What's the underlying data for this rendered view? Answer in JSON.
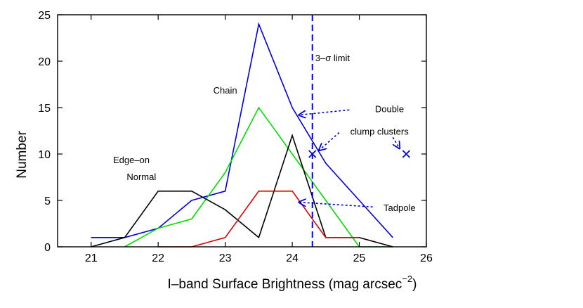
{
  "chart_data": {
    "type": "line",
    "title": "",
    "xlabel": "I–band Surface Brightness (mag arcsec",
    "xlabel_sup": "−2",
    "xlabel_close": ")",
    "ylabel": "Number",
    "xlim": [
      20.5,
      26
    ],
    "ylim": [
      0,
      25
    ],
    "xticks": [
      21,
      22,
      23,
      24,
      25,
      26
    ],
    "yticks": [
      0,
      5,
      10,
      15,
      20,
      25
    ],
    "grid": false,
    "series": [
      {
        "color": "#0000dd",
        "x": [
          21,
          21.5,
          22,
          22.5,
          23,
          23.5,
          24,
          24.5,
          25,
          25.5
        ],
        "y": [
          1,
          1,
          2,
          5,
          6,
          24,
          15,
          9,
          5,
          1
        ]
      },
      {
        "color": "#00dd00",
        "x": [
          21.5,
          22,
          22.5,
          23,
          23.5,
          24,
          24.5,
          25,
          25.5
        ],
        "y": [
          0,
          2,
          3,
          8,
          15,
          10,
          5,
          0,
          0
        ]
      },
      {
        "color": "#000000",
        "x": [
          21,
          21.5,
          22,
          22.5,
          23,
          23.5,
          24,
          24.5,
          25,
          25.5
        ],
        "y": [
          0,
          1,
          6,
          6,
          4,
          1,
          12,
          1,
          1,
          0
        ]
      },
      {
        "color": "#dd0000",
        "x": [
          22,
          22.5,
          23,
          23.5,
          24,
          24.5,
          25
        ],
        "y": [
          0,
          0,
          1,
          6,
          6,
          1,
          1
        ]
      }
    ],
    "limit_line": {
      "x": 24.3,
      "label": "3–σ limit",
      "color": "#0000dd"
    },
    "markers": [
      {
        "x": 24.3,
        "y": 10,
        "symbol": "x",
        "color": "#0000dd"
      },
      {
        "x": 25.7,
        "y": 10,
        "symbol": "x",
        "color": "#0000dd"
      }
    ],
    "annotations": [
      {
        "text": "Chain",
        "x": 23.0,
        "y": 16.5
      },
      {
        "text": "Double",
        "x": 25.45,
        "y": 14.5
      },
      {
        "text": "clump clusters",
        "x": 25.3,
        "y": 12.1
      },
      {
        "text": "Edge–on",
        "x": 21.6,
        "y": 9.0
      },
      {
        "text": "Normal",
        "x": 21.75,
        "y": 7.2
      },
      {
        "text": "Tadpole",
        "x": 25.6,
        "y": 3.85
      },
      {
        "text": "3–σ limit",
        "x": 24.6,
        "y": 20.0
      }
    ],
    "arrows": [
      {
        "from": [
          24.85,
          14.75
        ],
        "to": [
          24.1,
          14.2
        ],
        "color": "#0000dd"
      },
      {
        "from": [
          24.7,
          12.3
        ],
        "to": [
          24.4,
          10.4
        ],
        "color": "#0000dd"
      },
      {
        "from": [
          25.5,
          11.8
        ],
        "to": [
          25.6,
          10.6
        ],
        "color": "#0000dd"
      },
      {
        "from": [
          25.2,
          4.3
        ],
        "to": [
          24.1,
          4.8
        ],
        "color": "#0000dd"
      }
    ]
  }
}
